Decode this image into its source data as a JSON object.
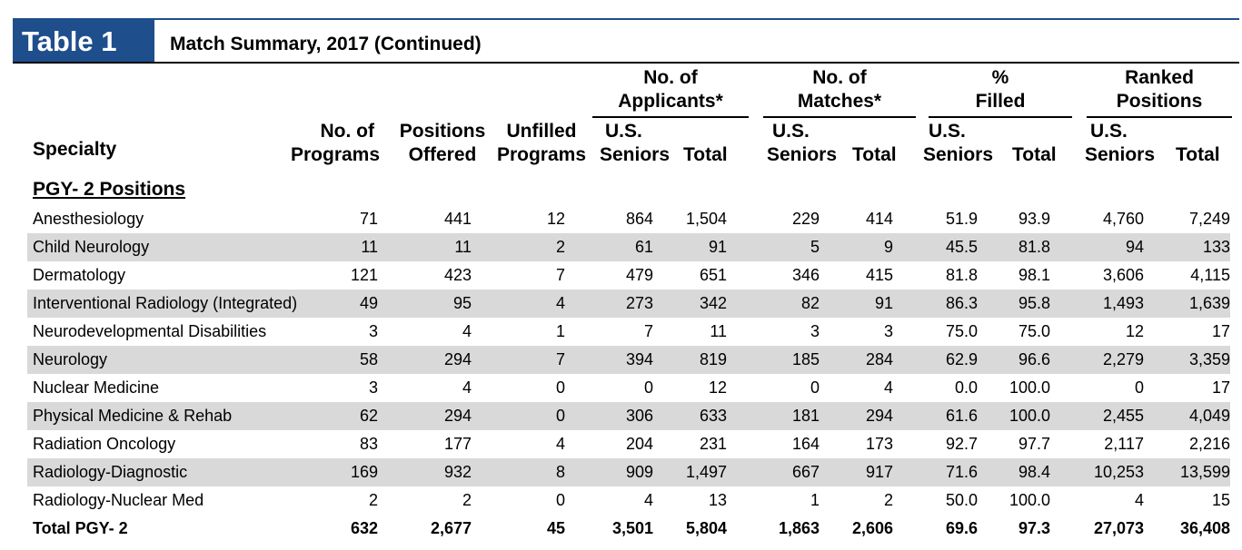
{
  "header": {
    "badge": "Table 1",
    "title": "Match Summary, 2017 (Continued)"
  },
  "columns": {
    "specialty": "Specialty",
    "programs": [
      "No. of",
      "Programs"
    ],
    "positions": [
      "Positions",
      "Offered"
    ],
    "unfilled": [
      "Unfilled",
      "Programs"
    ],
    "groups": [
      {
        "label": [
          "No. of",
          "Applicants*"
        ],
        "sub": [
          [
            "U.S.",
            "Seniors"
          ],
          [
            "",
            "Total"
          ]
        ]
      },
      {
        "label": [
          "No. of",
          "Matches*"
        ],
        "sub": [
          [
            "U.S.",
            "Seniors"
          ],
          [
            "",
            "Total"
          ]
        ]
      },
      {
        "label": [
          "%",
          "Filled"
        ],
        "sub": [
          [
            "U.S.",
            "Seniors"
          ],
          [
            "",
            "Total"
          ]
        ]
      },
      {
        "label": [
          "Ranked",
          "Positions"
        ],
        "sub": [
          [
            "U.S.",
            "Seniors"
          ],
          [
            "",
            "Total"
          ]
        ]
      }
    ]
  },
  "section": "PGY- 2 Positions",
  "rows": [
    [
      "Anesthesiology",
      "71",
      "441",
      "12",
      "864",
      "1,504",
      "229",
      "414",
      "51.9",
      "93.9",
      "4,760",
      "7,249"
    ],
    [
      "Child Neurology",
      "11",
      "11",
      "2",
      "61",
      "91",
      "5",
      "9",
      "45.5",
      "81.8",
      "94",
      "133"
    ],
    [
      "Dermatology",
      "121",
      "423",
      "7",
      "479",
      "651",
      "346",
      "415",
      "81.8",
      "98.1",
      "3,606",
      "4,115"
    ],
    [
      "Interventional Radiology (Integrated)",
      "49",
      "95",
      "4",
      "273",
      "342",
      "82",
      "91",
      "86.3",
      "95.8",
      "1,493",
      "1,639"
    ],
    [
      "Neurodevelopmental Disabilities",
      "3",
      "4",
      "1",
      "7",
      "11",
      "3",
      "3",
      "75.0",
      "75.0",
      "12",
      "17"
    ],
    [
      "Neurology",
      "58",
      "294",
      "7",
      "394",
      "819",
      "185",
      "284",
      "62.9",
      "96.6",
      "2,279",
      "3,359"
    ],
    [
      "Nuclear Medicine",
      "3",
      "4",
      "0",
      "0",
      "12",
      "0",
      "4",
      "0.0",
      "100.0",
      "0",
      "17"
    ],
    [
      "Physical Medicine & Rehab",
      "62",
      "294",
      "0",
      "306",
      "633",
      "181",
      "294",
      "61.6",
      "100.0",
      "2,455",
      "4,049"
    ],
    [
      "Radiation Oncology",
      "83",
      "177",
      "4",
      "204",
      "231",
      "164",
      "173",
      "92.7",
      "97.7",
      "2,117",
      "2,216"
    ],
    [
      "Radiology-Diagnostic",
      "169",
      "932",
      "8",
      "909",
      "1,497",
      "667",
      "917",
      "71.6",
      "98.4",
      "10,253",
      "13,599"
    ],
    [
      "Radiology-Nuclear Med",
      "2",
      "2",
      "0",
      "4",
      "13",
      "1",
      "2",
      "50.0",
      "100.0",
      "4",
      "15"
    ]
  ],
  "total": [
    "Total PGY- 2",
    "632",
    "2,677",
    "45",
    "3,501",
    "5,804",
    "1,863",
    "2,606",
    "69.6",
    "97.3",
    "27,073",
    "36,408"
  ]
}
